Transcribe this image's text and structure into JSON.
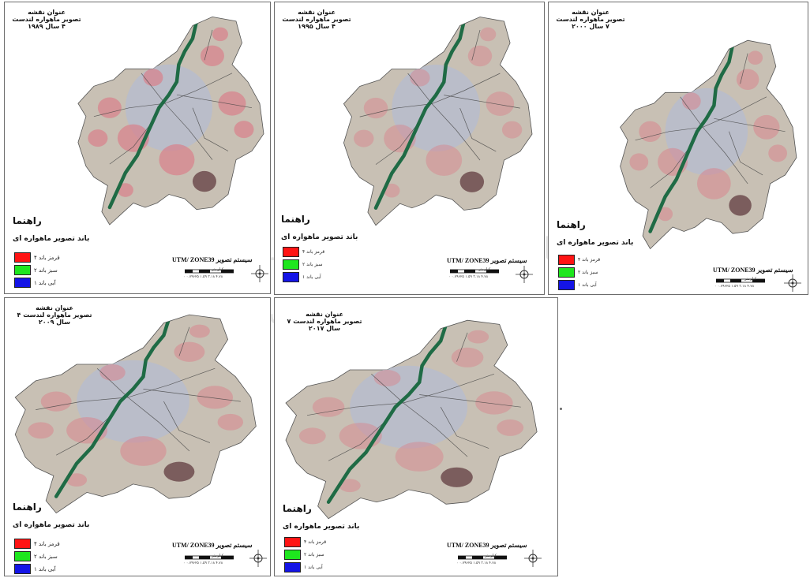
{
  "figure": {
    "panels": [
      {
        "id": "1989",
        "title_line1": "عنوان نقشه",
        "title_line2": "تصویر ماهواره لندست ۴ سال ۱۹۸۹",
        "legend_heading": "راهنما",
        "legend_subheading": "باند تصویر ماهواره ای",
        "legend_items": [
          {
            "label": "قرمز باند ۴",
            "color": "#ff1414"
          },
          {
            "label": "سبز باند ۲",
            "color": "#1ee61e"
          },
          {
            "label": "آبی باند ۱",
            "color": "#1414e6"
          }
        ],
        "coord_system": "UTM/ ZONE39 سیستم تصویر",
        "scale_unit": "کیلومتر",
        "scale_labels": "۰ ۰.۷۹۶۲۵ ۱.۵۹ ۳.۱۸ ۴.۷۸"
      },
      {
        "id": "1995",
        "title_line1": "عنوان نقشه",
        "title_line2": "تصویر ماهواره لندست ۴ سال ۱۹۹۵",
        "legend_heading": "راهنما",
        "legend_subheading": "باند تصویر ماهواره ای",
        "legend_items": [
          {
            "label": "قرمز باند ۴",
            "color": "#ff1414"
          },
          {
            "label": "سبز باند ۲",
            "color": "#1ee61e"
          },
          {
            "label": "آبی باند ۱",
            "color": "#1414e6"
          }
        ],
        "coord_system": "UTM/ ZONE39 سیستم تصویر",
        "scale_unit": "کیلومتر",
        "scale_labels": "۰ ۰.۷۹۶۲۵ ۱.۵۹ ۳.۱۸ ۴.۷۸"
      },
      {
        "id": "2000",
        "title_line1": "عنوان نقشه",
        "title_line2": "تصویر ماهواره لندست ۷ سال ۲۰۰۰",
        "legend_heading": "راهنما",
        "legend_subheading": "باند تصویر ماهواره ای",
        "legend_items": [
          {
            "label": "قرمز باند ۴",
            "color": "#ff1414"
          },
          {
            "label": "سبز باند ۲",
            "color": "#1ee61e"
          },
          {
            "label": "آبی باند ۱",
            "color": "#1414e6"
          }
        ],
        "coord_system": "UTM/ ZONE39 سیستم تصویر",
        "scale_unit": "کیلومتر",
        "scale_labels": "۰ ۰.۷۹۶۲۵ ۱.۵۹ ۳.۱۸ ۴.۷۸"
      },
      {
        "id": "2009",
        "title_line1": "عنوان نقشه",
        "title_line2": "تصویر ماهواره لندست ۴ سال ۲۰۰۹",
        "legend_heading": "راهنما",
        "legend_subheading": "باند تصویر ماهواره ای",
        "legend_items": [
          {
            "label": "قرمز باند ۴",
            "color": "#ff1414"
          },
          {
            "label": "سبز باند ۲",
            "color": "#1ee61e"
          },
          {
            "label": "آبی باند ۱",
            "color": "#1414e6"
          }
        ],
        "coord_system": "UTM/ ZONE39 سیستم تصویر",
        "scale_unit": "کیلومتر",
        "scale_labels": "۰ ۰.۷۹۶۲۵ ۱.۵۹ ۳.۱۸ ۴.۷۸"
      },
      {
        "id": "2017",
        "title_line1": "عنوان نقشه",
        "title_line2": "تصویر ماهواره لندست ۷ سال ۲۰۱۷",
        "legend_heading": "راهنما",
        "legend_subheading": "باند تصویر ماهواره ای",
        "legend_items": [
          {
            "label": "قرمز باند ۴",
            "color": "#ff1414"
          },
          {
            "label": "سبز باند ۲",
            "color": "#1ee61e"
          },
          {
            "label": "آبی باند ۱",
            "color": "#1414e6"
          }
        ],
        "coord_system": "UTM/ ZONE39 سیستم تصویر",
        "scale_unit": "کیلومتر",
        "scale_labels": "۰ ۰.۷۹۶۲۵ ۱.۵۹ ۳.۱۸ ۴.۷۸"
      }
    ]
  },
  "colors": {
    "river": "#1f6b45",
    "urban": "#b7bccd",
    "vegetation": "#d9808a",
    "bare_soil": "#c8c0b4"
  },
  "watermark": {
    "icon": "watermark-emblem-icon",
    "text_line1": "پژوهشگاه علوم انسانی و مطالعات فرهنگی",
    "text_line2": "پرتال جامع علوم انسانی"
  }
}
